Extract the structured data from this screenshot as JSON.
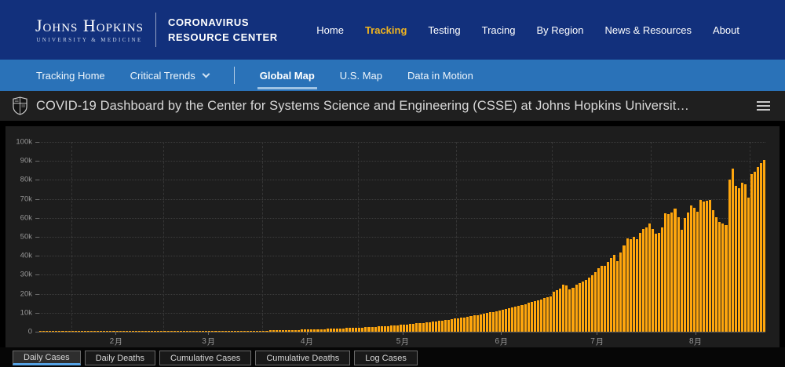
{
  "brand": {
    "institution": "Johns Hopkins",
    "institution_sub": "UNIVERSITY & MEDICINE",
    "center_line1": "CORONAVIRUS",
    "center_line2": "RESOURCE CENTER"
  },
  "top_nav": {
    "items": [
      {
        "label": "Home",
        "active": false
      },
      {
        "label": "Tracking",
        "active": true
      },
      {
        "label": "Testing",
        "active": false
      },
      {
        "label": "Tracing",
        "active": false
      },
      {
        "label": "By Region",
        "active": false
      },
      {
        "label": "News & Resources",
        "active": false
      },
      {
        "label": "About",
        "active": false
      }
    ]
  },
  "sub_nav": {
    "items": [
      {
        "label": "Tracking Home",
        "active": false,
        "dropdown": false
      },
      {
        "label": "Critical Trends",
        "active": false,
        "dropdown": true
      },
      {
        "label": "Global Map",
        "active": true,
        "dropdown": false
      },
      {
        "label": "U.S. Map",
        "active": false,
        "dropdown": false
      },
      {
        "label": "Data in Motion",
        "active": false,
        "dropdown": false
      }
    ]
  },
  "dashboard_header": {
    "title": "COVID-19 Dashboard by the Center for Systems Science and Engineering (CSSE) at Johns Hopkins Universit…",
    "icons": {
      "left": "jhu-shield",
      "right": "hamburger-menu"
    }
  },
  "chart_data": {
    "type": "bar",
    "title": "Daily Cases",
    "xlabel": "",
    "ylabel": "",
    "ylim": [
      0,
      100000
    ],
    "grid": true,
    "bar_color": "#FFA60D",
    "y_ticks": [
      "100k",
      "90k",
      "80k",
      "70k",
      "60k",
      "50k",
      "40k",
      "30k",
      "20k",
      "10k",
      "0"
    ],
    "x_month_labels": [
      "2月",
      "3月",
      "4月",
      "5月",
      "6月",
      "7月",
      "8月"
    ],
    "month_start_idx": [
      10,
      39,
      70,
      100,
      131,
      161,
      192,
      223
    ],
    "month_label_idx": [
      24,
      53,
      84,
      114,
      145,
      175,
      206
    ],
    "values": [
      0,
      0,
      0,
      0,
      0,
      1,
      1,
      0,
      0,
      1,
      0,
      0,
      1,
      0,
      0,
      0,
      0,
      0,
      0,
      0,
      0,
      0,
      0,
      0,
      2,
      0,
      0,
      0,
      0,
      0,
      0,
      0,
      0,
      0,
      0,
      0,
      0,
      0,
      0,
      0,
      2,
      3,
      2,
      5,
      4,
      6,
      8,
      10,
      12,
      14,
      16,
      20,
      26,
      30,
      36,
      44,
      52,
      60,
      75,
      90,
      110,
      135,
      160,
      190,
      220,
      260,
      310,
      360,
      420,
      480,
      540,
      600,
      640,
      680,
      720,
      760,
      800,
      840,
      880,
      920,
      960,
      1000,
      1050,
      1100,
      1150,
      1200,
      1260,
      1320,
      1380,
      1440,
      1500,
      1560,
      1620,
      1690,
      1760,
      1830,
      1900,
      1960,
      2030,
      2100,
      2180,
      2270,
      2360,
      2450,
      2550,
      2650,
      2760,
      2870,
      2980,
      3100,
      3220,
      3350,
      3480,
      3620,
      3760,
      3900,
      4050,
      4210,
      4370,
      4540,
      4710,
      4890,
      5080,
      5270,
      5470,
      5680,
      5900,
      6120,
      6350,
      6590,
      6840,
      7100,
      7360,
      7630,
      7910,
      8200,
      8500,
      8810,
      9130,
      9460,
      9800,
      10150,
      10510,
      10880,
      11260,
      11650,
      12050,
      12460,
      12880,
      13310,
      13750,
      14200,
      14660,
      15130,
      15610,
      16100,
      16600,
      17110,
      17630,
      18160,
      18700,
      21000,
      22100,
      22800,
      24900,
      24200,
      22300,
      23100,
      24900,
      25700,
      26500,
      27100,
      28600,
      29900,
      31600,
      33300,
      34900,
      34700,
      36700,
      38700,
      40400,
      37100,
      41700,
      45600,
      49300,
      48900,
      50100,
      48600,
      52100,
      54000,
      55100,
      57100,
      54000,
      51600,
      52000,
      55000,
      62600,
      61900,
      63000,
      64700,
      60500,
      53700,
      59900,
      63000,
      66700,
      65300,
      63300,
      69500,
      68800,
      69000,
      69500,
      64000,
      60500,
      57800,
      57000,
      56400,
      80000,
      85900,
      77000,
      75600,
      78400,
      77700,
      70800,
      83200,
      84500,
      86600,
      89000,
      90700
    ]
  },
  "footer_tabs": [
    {
      "label": "Daily Cases",
      "active": true
    },
    {
      "label": "Daily Deaths",
      "active": false
    },
    {
      "label": "Cumulative Cases",
      "active": false
    },
    {
      "label": "Cumulative Deaths",
      "active": false
    },
    {
      "label": "Log Cases",
      "active": false
    }
  ],
  "colors": {
    "top_nav_bg": "#12307C",
    "accent_gold": "#F0B41F",
    "sub_nav_bg": "#2A72B8",
    "sub_nav_underline": "#9FC3E4",
    "dash_header_bg": "#1F1F1F",
    "panel_bg": "#1D1D1D",
    "bar_color": "#FFA60D",
    "axis_text": "#979797",
    "active_tab_underline": "#55A2E4"
  }
}
